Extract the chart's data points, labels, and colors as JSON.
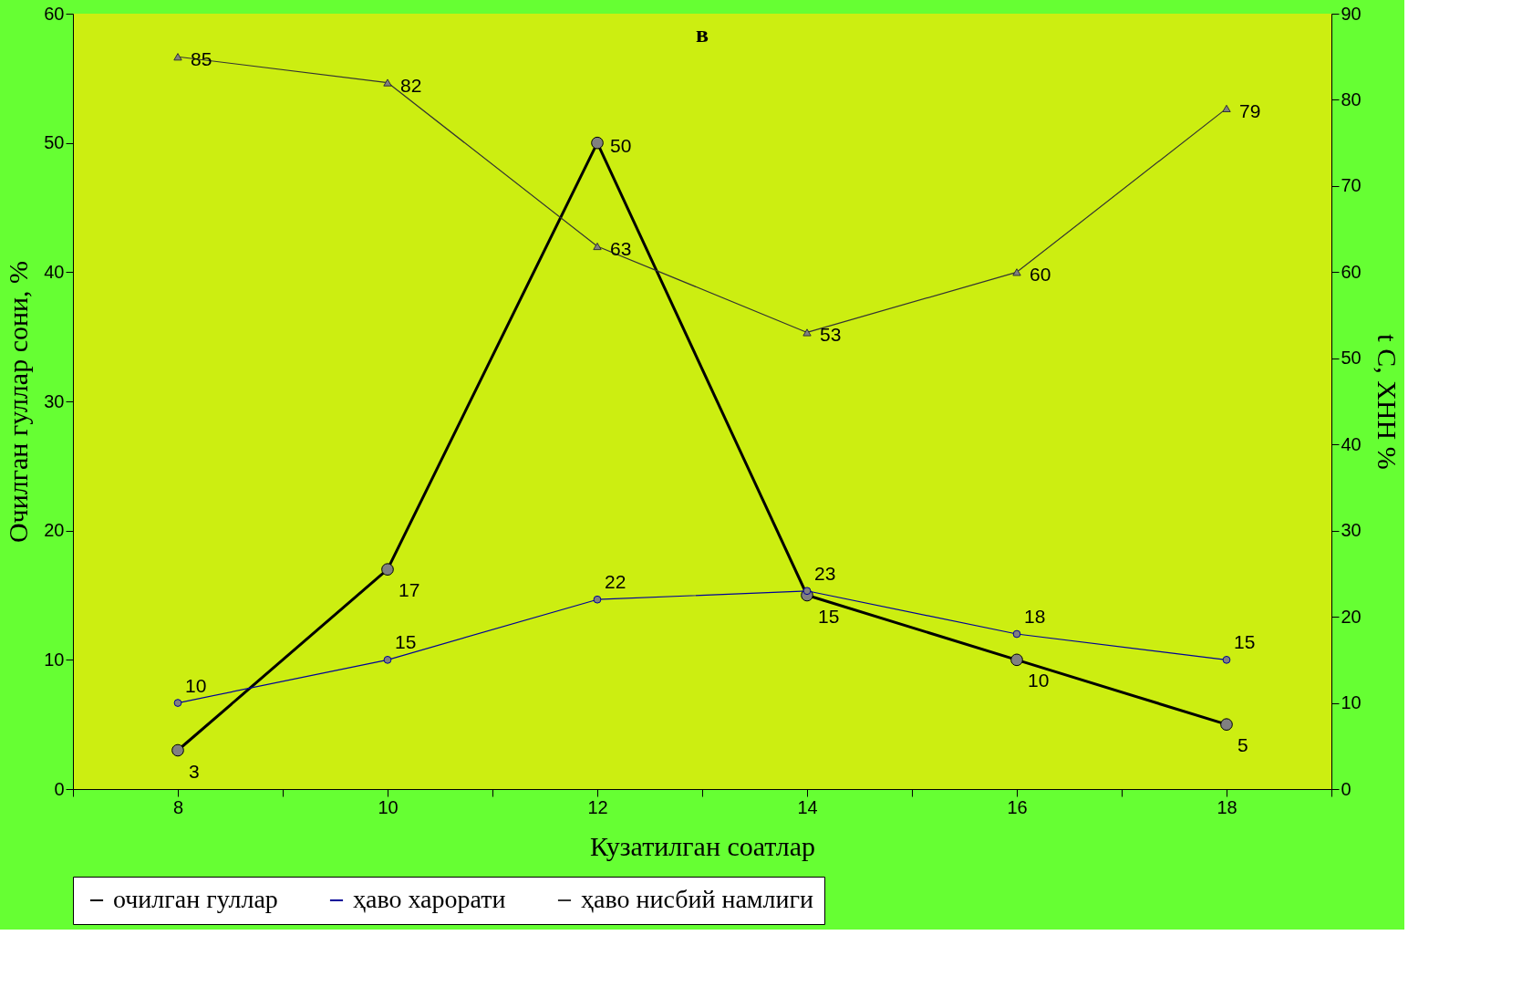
{
  "chart_data": {
    "type": "line",
    "title": "в",
    "xlabel": "Кузатилган соатлар",
    "ylabel": "Очилган гуллар сони, %",
    "y2label": "t C, ХНН %",
    "x": [
      8,
      10,
      12,
      14,
      16,
      18
    ],
    "series": [
      {
        "name": "очилган гуллар",
        "color": "#000000",
        "marker": "circle",
        "values": [
          3,
          17,
          50,
          15,
          10,
          5
        ]
      },
      {
        "name": "ҳаво харорати",
        "color": "#000099",
        "marker": "circle",
        "axis": "y2",
        "values": [
          10,
          15,
          22,
          23,
          18,
          15
        ]
      },
      {
        "name": "ҳаво нисбий намлиги",
        "color": "#333333",
        "marker": "triangle",
        "axis": "y2",
        "values": [
          85,
          82,
          63,
          53,
          60,
          79
        ]
      }
    ],
    "xlim": [
      7,
      19
    ],
    "xticks": [
      {
        "value": 7,
        "label": null
      },
      8,
      {
        "value": 9,
        "label": null
      },
      10,
      {
        "value": 11,
        "label": null
      },
      12,
      {
        "value": 13,
        "label": null
      },
      14,
      {
        "value": 15,
        "label": null
      },
      16,
      {
        "value": 17,
        "label": null
      },
      18,
      {
        "value": 19,
        "label": null
      }
    ],
    "ylim": [
      0,
      60
    ],
    "yticks": [
      0,
      10,
      20,
      30,
      40,
      50,
      60
    ],
    "y2lim": [
      0,
      90
    ],
    "y2ticks": [
      0,
      10,
      20,
      30,
      40,
      50,
      60,
      70,
      80,
      90
    ],
    "data_labels": true,
    "grid": false,
    "legend": "bottom"
  }
}
